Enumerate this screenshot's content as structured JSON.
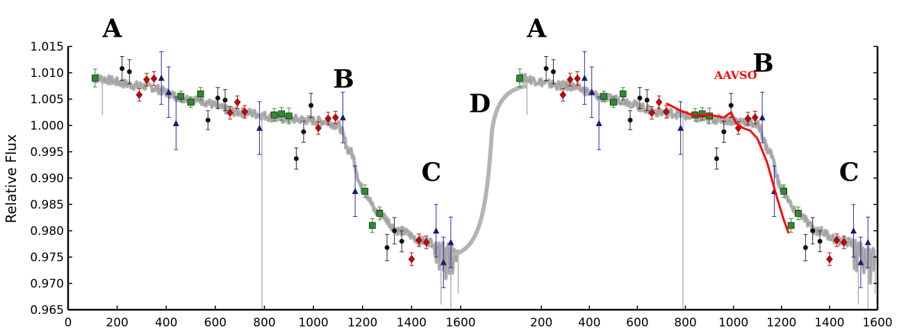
{
  "chart_data": {
    "type": "scatter",
    "ylabel": "Relative Flux",
    "ylim": [
      0.965,
      1.015
    ],
    "y_ticks": [
      "0.965",
      "0.970",
      "0.975",
      "0.980",
      "0.985",
      "0.990",
      "0.995",
      "1.000",
      "1.005",
      "1.010",
      "1.015"
    ],
    "x_ticks_left": [
      "0",
      "200",
      "400",
      "600",
      "800",
      "1000",
      "1200",
      "1400",
      "1600"
    ],
    "x_ticks_right": [
      "200",
      "400",
      "600",
      "800",
      "1000",
      "1200",
      "1400",
      "1600"
    ],
    "panels": [
      {
        "xlim": [
          0,
          1600
        ],
        "annotations": [
          {
            "text": "A",
            "x": 140,
            "y": 1.0168
          },
          {
            "text": "B",
            "x": 1080,
            "y": 1.0072
          },
          {
            "text": "C",
            "x": 1440,
            "y": 0.9895
          }
        ]
      },
      {
        "xlim": [
          0,
          1600
        ],
        "annotations": [
          {
            "text": "A",
            "x": 140,
            "y": 1.0168
          },
          {
            "text": "B",
            "x": 1080,
            "y": 1.0102
          },
          {
            "text": "C",
            "x": 1440,
            "y": 0.9895
          },
          {
            "text": "AAVSO",
            "x": 920,
            "y": 1.0088
          }
        ]
      }
    ],
    "gap_annotation": {
      "text": "D"
    },
    "series": [
      {
        "marker": "square",
        "color": "#2e8b2e",
        "points": [
          [
            110,
            1.009,
            0.0017
          ],
          [
            460,
            1.0055,
            0.001
          ],
          [
            500,
            1.0044,
            0.001
          ],
          [
            540,
            1.006,
            0.0012
          ],
          [
            840,
            1.002,
            0.0012
          ],
          [
            870,
            1.0022,
            0.0012
          ],
          [
            900,
            1.0018,
            0.0015
          ],
          [
            1210,
            0.9875,
            0.0012
          ],
          [
            1240,
            0.981,
            0.0013
          ],
          [
            1270,
            0.9833,
            0.0012
          ]
        ]
      },
      {
        "marker": "circle",
        "color": "#111111",
        "points": [
          [
            220,
            1.0108,
            0.0023
          ],
          [
            250,
            1.0102,
            0.0023
          ],
          [
            570,
            1.001,
            0.0018
          ],
          [
            610,
            1.0052,
            0.002
          ],
          [
            640,
            1.0048,
            0.002
          ],
          [
            930,
            0.9937,
            0.002
          ],
          [
            960,
            0.9988,
            0.002
          ],
          [
            990,
            1.0038,
            0.0023
          ],
          [
            1300,
            0.9768,
            0.0025
          ],
          [
            1330,
            0.98,
            0.0025
          ],
          [
            1360,
            0.978,
            0.002
          ]
        ]
      },
      {
        "marker": "diamond",
        "color": "#cc0000",
        "points": [
          [
            290,
            1.0058,
            0.0012
          ],
          [
            320,
            1.0087,
            0.0012
          ],
          [
            350,
            1.0089,
            0.0013
          ],
          [
            660,
            1.0024,
            0.0012
          ],
          [
            690,
            1.0044,
            0.0012
          ],
          [
            720,
            1.0026,
            0.0012
          ],
          [
            1020,
            0.9995,
            0.0012
          ],
          [
            1060,
            1.0013,
            0.0012
          ],
          [
            1090,
            1.0015,
            0.0012
          ],
          [
            1400,
            0.9746,
            0.0012
          ],
          [
            1430,
            0.9782,
            0.0012
          ],
          [
            1460,
            0.9778,
            0.0012
          ]
        ]
      },
      {
        "marker": "triangle",
        "color": "#1a1a6e",
        "points": [
          [
            380,
            1.009,
            0.005
          ],
          [
            410,
            1.0063,
            0.0048
          ],
          [
            440,
            1.0004,
            0.005
          ],
          [
            780,
            0.9995,
            0.005
          ],
          [
            1120,
            1.0015,
            0.0048
          ],
          [
            1170,
            0.9875,
            0.0048
          ],
          [
            1500,
            0.98,
            0.005
          ],
          [
            1530,
            0.974,
            0.0048
          ],
          [
            1560,
            0.9778,
            0.0048
          ]
        ]
      }
    ],
    "aavso_fit": [
      [
        720,
        1.0042
      ],
      [
        780,
        1.0028
      ],
      [
        840,
        1.0018
      ],
      [
        900,
        1.002
      ],
      [
        960,
        1.0015
      ],
      [
        990,
        1.0025
      ],
      [
        1010,
        1.0005
      ],
      [
        1040,
        0.9995
      ],
      [
        1070,
        0.999
      ],
      [
        1100,
        0.9975
      ],
      [
        1140,
        0.993
      ],
      [
        1180,
        0.9865
      ],
      [
        1210,
        0.982
      ],
      [
        1230,
        0.9795
      ]
    ]
  }
}
